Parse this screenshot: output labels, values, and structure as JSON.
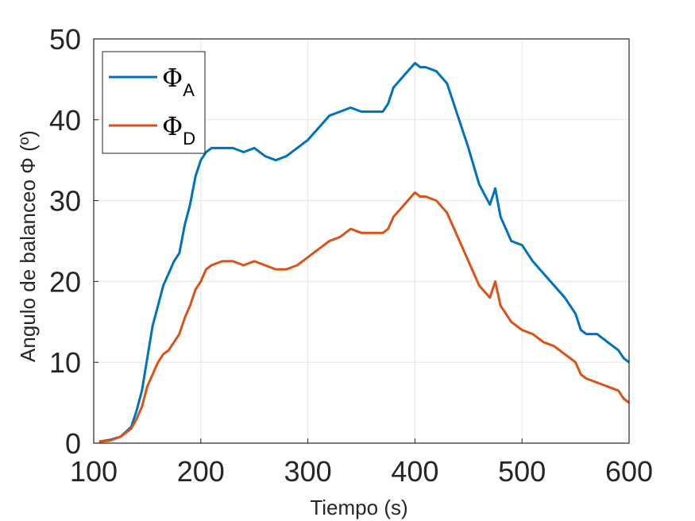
{
  "chart_data": {
    "type": "line",
    "title": "",
    "xlabel": "Tiempo (s)",
    "ylabel": "Angulo de balanceo Φ (º)",
    "xlim": [
      100,
      600
    ],
    "ylim": [
      0,
      50
    ],
    "xticks": [
      "100",
      "200",
      "300",
      "400",
      "500",
      "600"
    ],
    "yticks": [
      "0",
      "10",
      "20",
      "30",
      "40",
      "50"
    ],
    "grid": true,
    "legend_position": "top-left",
    "series": [
      {
        "name": "ΦA",
        "symbol": "Φ",
        "subscript": "A",
        "color": "#0072BD",
        "x": [
          105,
          115,
          125,
          135,
          140,
          145,
          150,
          155,
          160,
          165,
          170,
          175,
          180,
          185,
          190,
          195,
          200,
          205,
          210,
          220,
          230,
          240,
          250,
          260,
          270,
          280,
          290,
          300,
          310,
          320,
          330,
          340,
          350,
          360,
          370,
          375,
          380,
          390,
          400,
          405,
          410,
          420,
          430,
          440,
          450,
          460,
          470,
          475,
          480,
          490,
          500,
          510,
          520,
          530,
          540,
          550,
          555,
          560,
          570,
          580,
          590,
          595,
          600
        ],
        "y": [
          0.2,
          0.4,
          0.8,
          2.0,
          4.0,
          6.5,
          10.5,
          14.5,
          17.0,
          19.5,
          21.0,
          22.5,
          23.5,
          27.0,
          29.5,
          33.0,
          35.0,
          36.0,
          36.5,
          36.5,
          36.5,
          36.0,
          36.5,
          35.5,
          35.0,
          35.5,
          36.5,
          37.5,
          39.0,
          40.5,
          41.0,
          41.5,
          41.0,
          41.0,
          41.0,
          42.0,
          44.0,
          45.5,
          47.0,
          46.5,
          46.5,
          46.0,
          44.5,
          40.5,
          36.5,
          32.0,
          29.5,
          31.5,
          28.0,
          25.0,
          24.5,
          22.5,
          21.0,
          19.5,
          18.0,
          16.0,
          14.0,
          13.5,
          13.5,
          12.5,
          11.5,
          10.5,
          10.0
        ]
      },
      {
        "name": "ΦD",
        "symbol": "Φ",
        "subscript": "D",
        "color": "#D95319",
        "x": [
          105,
          115,
          125,
          135,
          140,
          145,
          150,
          155,
          160,
          165,
          170,
          175,
          180,
          185,
          190,
          195,
          200,
          205,
          210,
          220,
          230,
          240,
          250,
          260,
          270,
          280,
          290,
          300,
          310,
          320,
          330,
          340,
          350,
          360,
          370,
          375,
          380,
          390,
          400,
          405,
          410,
          420,
          430,
          440,
          450,
          460,
          470,
          475,
          480,
          490,
          500,
          510,
          520,
          530,
          540,
          550,
          555,
          560,
          570,
          580,
          590,
          595,
          600
        ],
        "y": [
          0.2,
          0.3,
          0.8,
          1.8,
          3.0,
          4.5,
          7.0,
          8.5,
          10.0,
          11.0,
          11.5,
          12.5,
          13.5,
          15.5,
          17.0,
          19.0,
          20.0,
          21.5,
          22.0,
          22.5,
          22.5,
          22.0,
          22.5,
          22.0,
          21.5,
          21.5,
          22.0,
          23.0,
          24.0,
          25.0,
          25.5,
          26.5,
          26.0,
          26.0,
          26.0,
          26.5,
          28.0,
          29.5,
          31.0,
          30.5,
          30.5,
          30.0,
          28.5,
          25.5,
          22.5,
          19.5,
          18.0,
          20.0,
          17.0,
          15.0,
          14.0,
          13.5,
          12.5,
          12.0,
          11.0,
          10.0,
          8.5,
          8.0,
          7.5,
          7.0,
          6.5,
          5.5,
          5.0
        ]
      }
    ]
  }
}
